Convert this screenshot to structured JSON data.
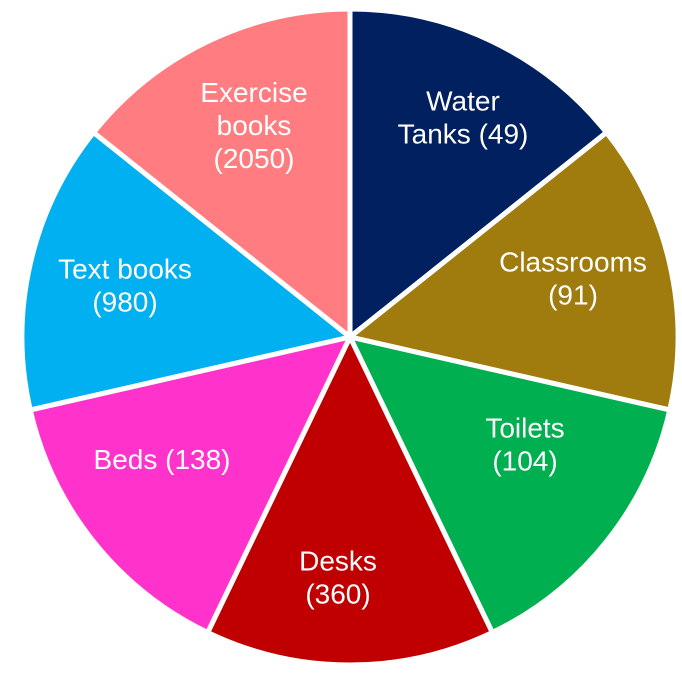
{
  "chart_data": {
    "type": "pie",
    "slices": [
      {
        "label_lines": [
          "Water",
          "Tanks (49)"
        ],
        "category": "Water Tanks",
        "value": 49,
        "color": "#002060"
      },
      {
        "label_lines": [
          "Classrooms",
          "(91)"
        ],
        "category": "Classrooms",
        "value": 91,
        "color": "#A07C0E"
      },
      {
        "label_lines": [
          "Toilets",
          "(104)"
        ],
        "category": "Toilets",
        "value": 104,
        "color": "#00B050"
      },
      {
        "label_lines": [
          "Desks",
          "(360)"
        ],
        "category": "Desks",
        "value": 360,
        "color": "#C00000"
      },
      {
        "label_lines": [
          "Beds (138)"
        ],
        "category": "Beds",
        "value": 138,
        "color": "#FF33CC"
      },
      {
        "label_lines": [
          "Text books",
          "(980)"
        ],
        "category": "Text books",
        "value": 980,
        "color": "#00B0F0"
      },
      {
        "label_lines": [
          "Exercise",
          "books",
          "(2050)"
        ],
        "category": "Exercise books",
        "value": 2050,
        "color": "#FF7C80"
      }
    ],
    "slice_sizing": "equal",
    "legend": "none",
    "title": ""
  }
}
